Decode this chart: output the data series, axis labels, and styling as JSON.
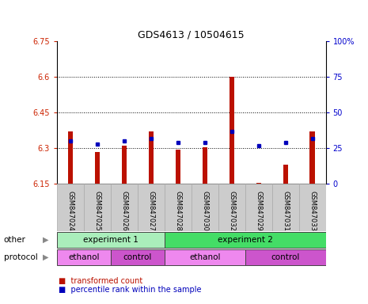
{
  "title": "GDS4613 / 10504615",
  "samples": [
    "GSM847024",
    "GSM847025",
    "GSM847026",
    "GSM847027",
    "GSM847028",
    "GSM847030",
    "GSM847032",
    "GSM847029",
    "GSM847031",
    "GSM847033"
  ],
  "bar_values": [
    6.37,
    6.285,
    6.31,
    6.37,
    6.295,
    6.305,
    6.6,
    6.155,
    6.23,
    6.37
  ],
  "dot_values": [
    30,
    28,
    30,
    32,
    29,
    29,
    37,
    27,
    29,
    32
  ],
  "ymin": 6.15,
  "ymax": 6.75,
  "y_ticks": [
    6.15,
    6.3,
    6.45,
    6.6,
    6.75
  ],
  "y_tick_labels": [
    "6.15",
    "6.3",
    "6.45",
    "6.6",
    "6.75"
  ],
  "right_yticks": [
    0,
    25,
    50,
    75,
    100
  ],
  "right_ytick_labels": [
    "0",
    "25",
    "50",
    "75",
    "100%"
  ],
  "bar_color": "#bb1100",
  "dot_color": "#0000bb",
  "group_other": [
    {
      "label": "experiment 1",
      "start": 0,
      "end": 4,
      "color": "#aaeebb"
    },
    {
      "label": "experiment 2",
      "start": 4,
      "end": 10,
      "color": "#44dd66"
    }
  ],
  "group_protocol": [
    {
      "label": "ethanol",
      "start": 0,
      "end": 2,
      "color": "#ee88ee"
    },
    {
      "label": "control",
      "start": 2,
      "end": 4,
      "color": "#cc55cc"
    },
    {
      "label": "ethanol",
      "start": 4,
      "end": 7,
      "color": "#ee88ee"
    },
    {
      "label": "control",
      "start": 7,
      "end": 10,
      "color": "#cc55cc"
    }
  ],
  "other_label": "other",
  "protocol_label": "protocol",
  "legend_items": [
    {
      "label": "transformed count",
      "color": "#bb1100"
    },
    {
      "label": "percentile rank within the sample",
      "color": "#0000bb"
    }
  ],
  "bg_color": "#ffffff",
  "tick_color_left": "#cc2200",
  "tick_color_right": "#0000cc",
  "xlabel_bg": "#cccccc"
}
